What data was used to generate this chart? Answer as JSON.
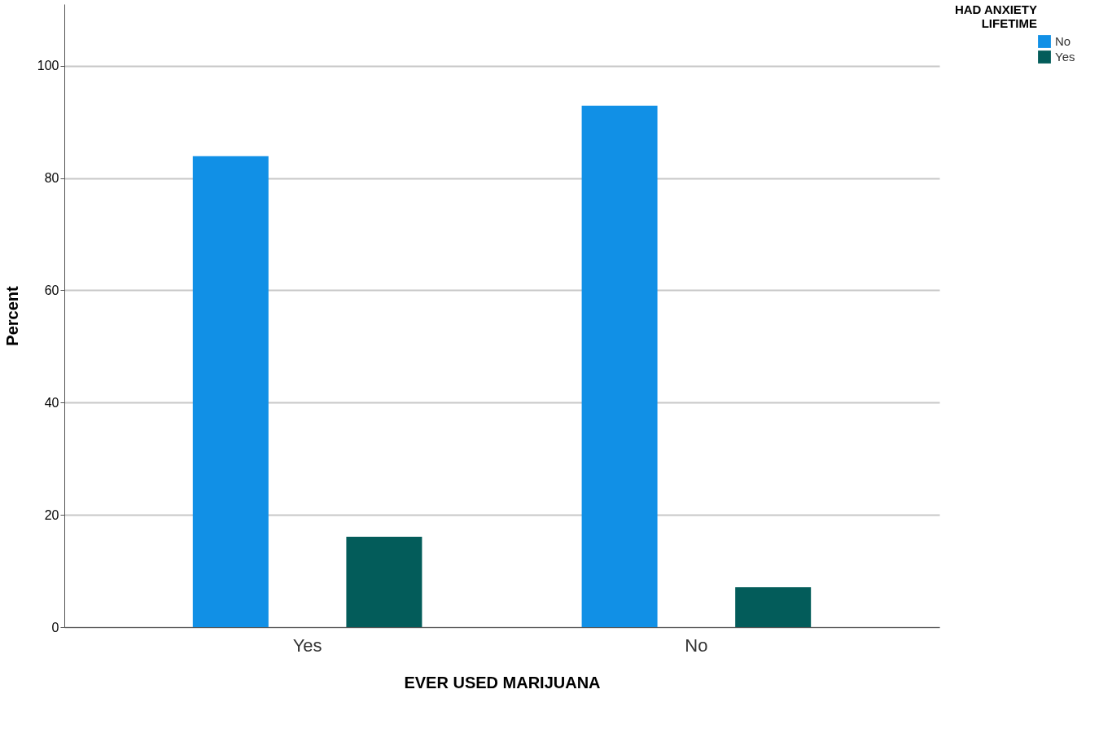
{
  "chart_data": {
    "type": "bar",
    "xlabel": "EVER USED MARIJUANA",
    "ylabel": "Percent",
    "legend_title": "HAD ANXIETY LIFETIME",
    "categories": [
      "Yes",
      "No"
    ],
    "series": [
      {
        "name": "No",
        "color": "#1190e6",
        "values": [
          83.9,
          92.9
        ]
      },
      {
        "name": "Yes",
        "color": "#035c5a",
        "values": [
          16.1,
          7.1
        ]
      }
    ],
    "ylim": [
      0,
      111
    ],
    "yticks": [
      0,
      20,
      40,
      60,
      80,
      100
    ],
    "grid": "y",
    "legend": "top right"
  }
}
